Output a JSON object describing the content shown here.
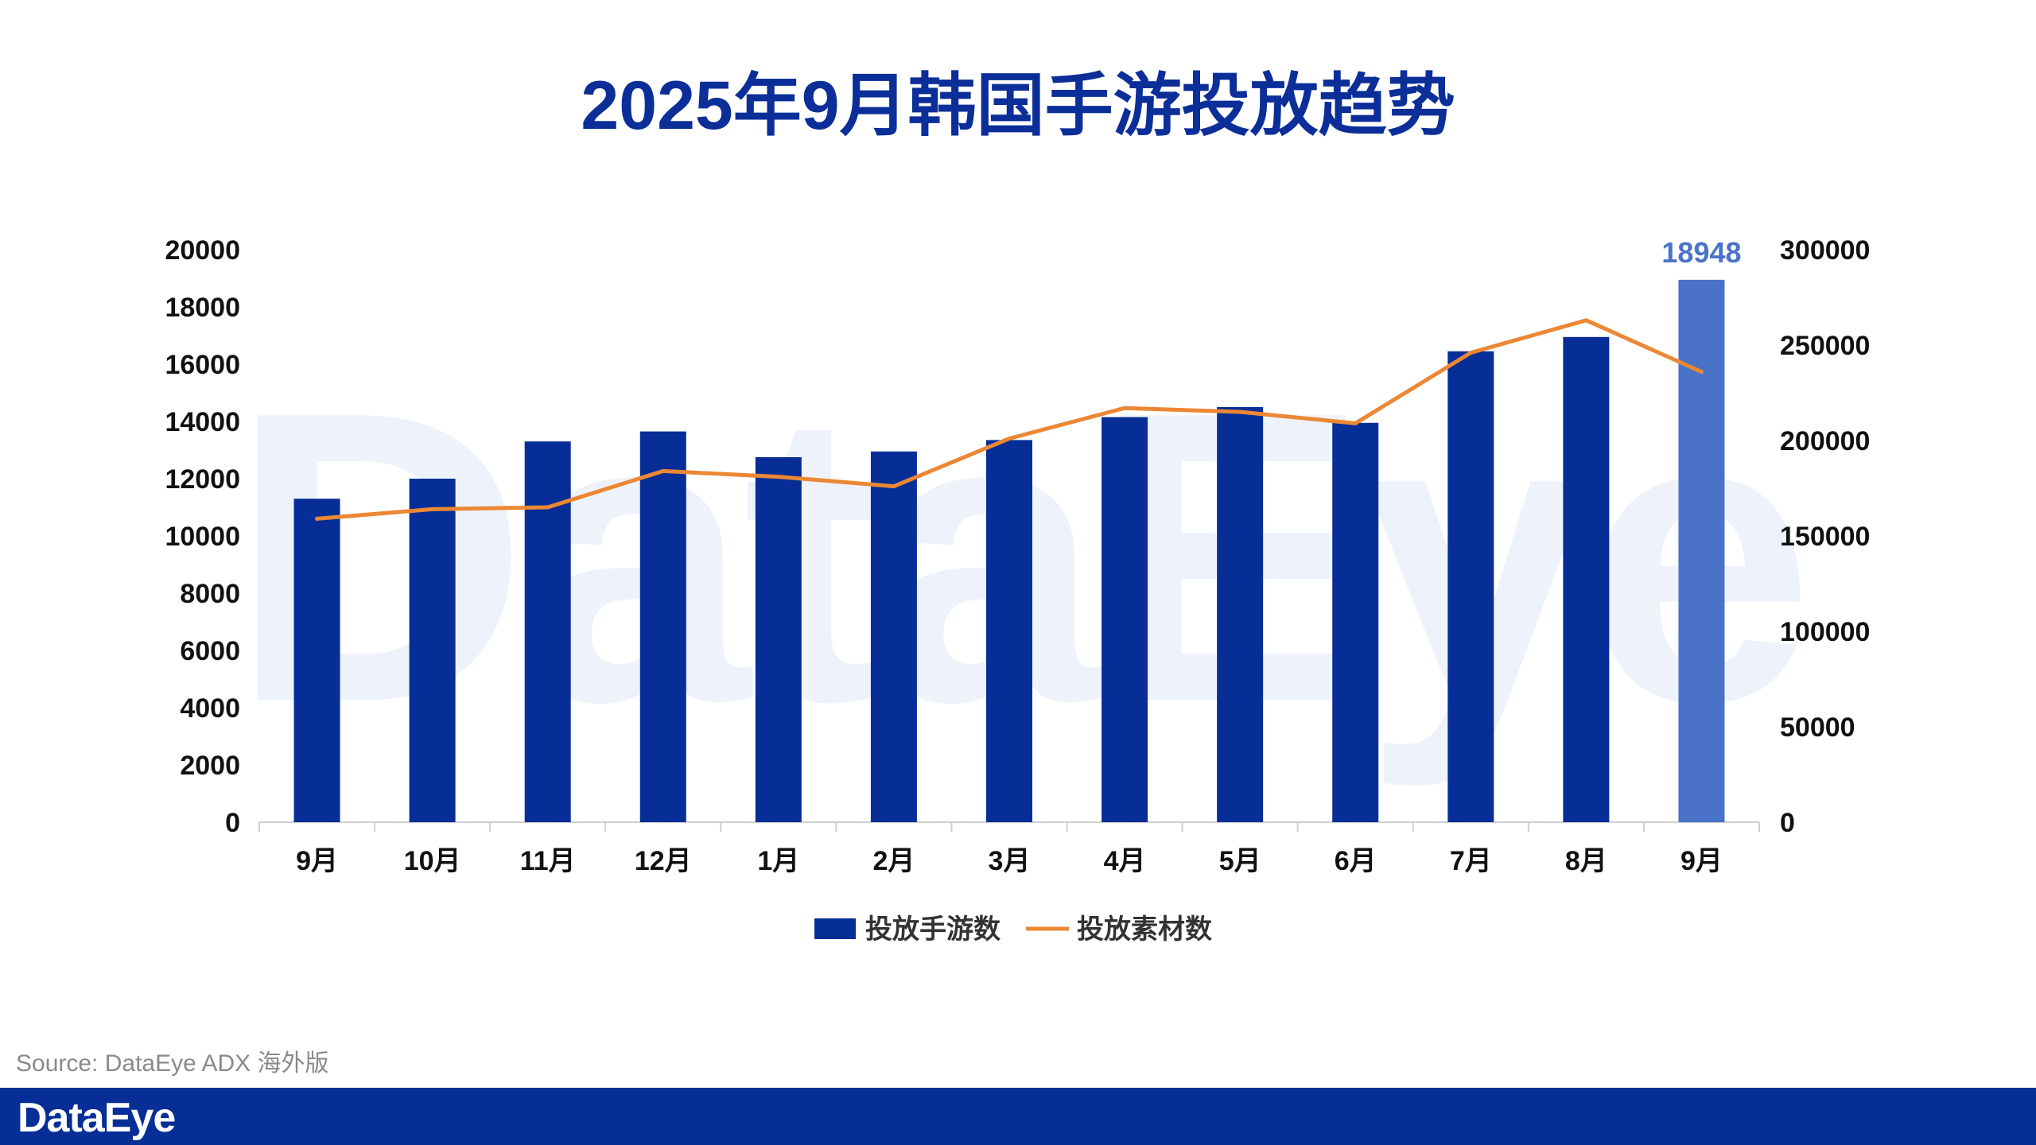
{
  "chart_data": {
    "type": "bar+line",
    "title": "2025年9月韩国手游投放趋势",
    "categories": [
      "9月",
      "10月",
      "11月",
      "12月",
      "1月",
      "2月",
      "3月",
      "4月",
      "5月",
      "6月",
      "7月",
      "8月",
      "9月"
    ],
    "series": [
      {
        "name": "投放手游数",
        "type": "bar",
        "axis": "left",
        "values": [
          11300,
          12000,
          13300,
          13650,
          12750,
          12950,
          13350,
          14150,
          14500,
          13950,
          16450,
          16950,
          18948
        ],
        "color": "#062e96",
        "highlight_color": "#4a72c9"
      },
      {
        "name": "投放素材数",
        "type": "line",
        "axis": "right",
        "values": [
          159000,
          164000,
          165000,
          184000,
          181000,
          176000,
          201000,
          217000,
          215000,
          209000,
          246000,
          263000,
          236000
        ],
        "color": "#ec8734"
      }
    ],
    "y_left": {
      "min": 0,
      "max": 20000,
      "ticks": [
        "0",
        "2000",
        "4000",
        "6000",
        "8000",
        "10000",
        "12000",
        "14000",
        "16000",
        "18000",
        "20000"
      ]
    },
    "y_right": {
      "min": 0,
      "max": 300000,
      "ticks": [
        "0",
        "50000",
        "100000",
        "150000",
        "200000",
        "250000",
        "300000"
      ]
    },
    "highlight": {
      "index": 12,
      "label": "18948"
    },
    "legend": [
      "投放手游数",
      "投放素材数"
    ]
  },
  "watermark": "DataEye",
  "source": "Source: DataEye ADX 海外版",
  "footer": {
    "brand": "DataEye",
    "bar_color": "#062e96"
  }
}
